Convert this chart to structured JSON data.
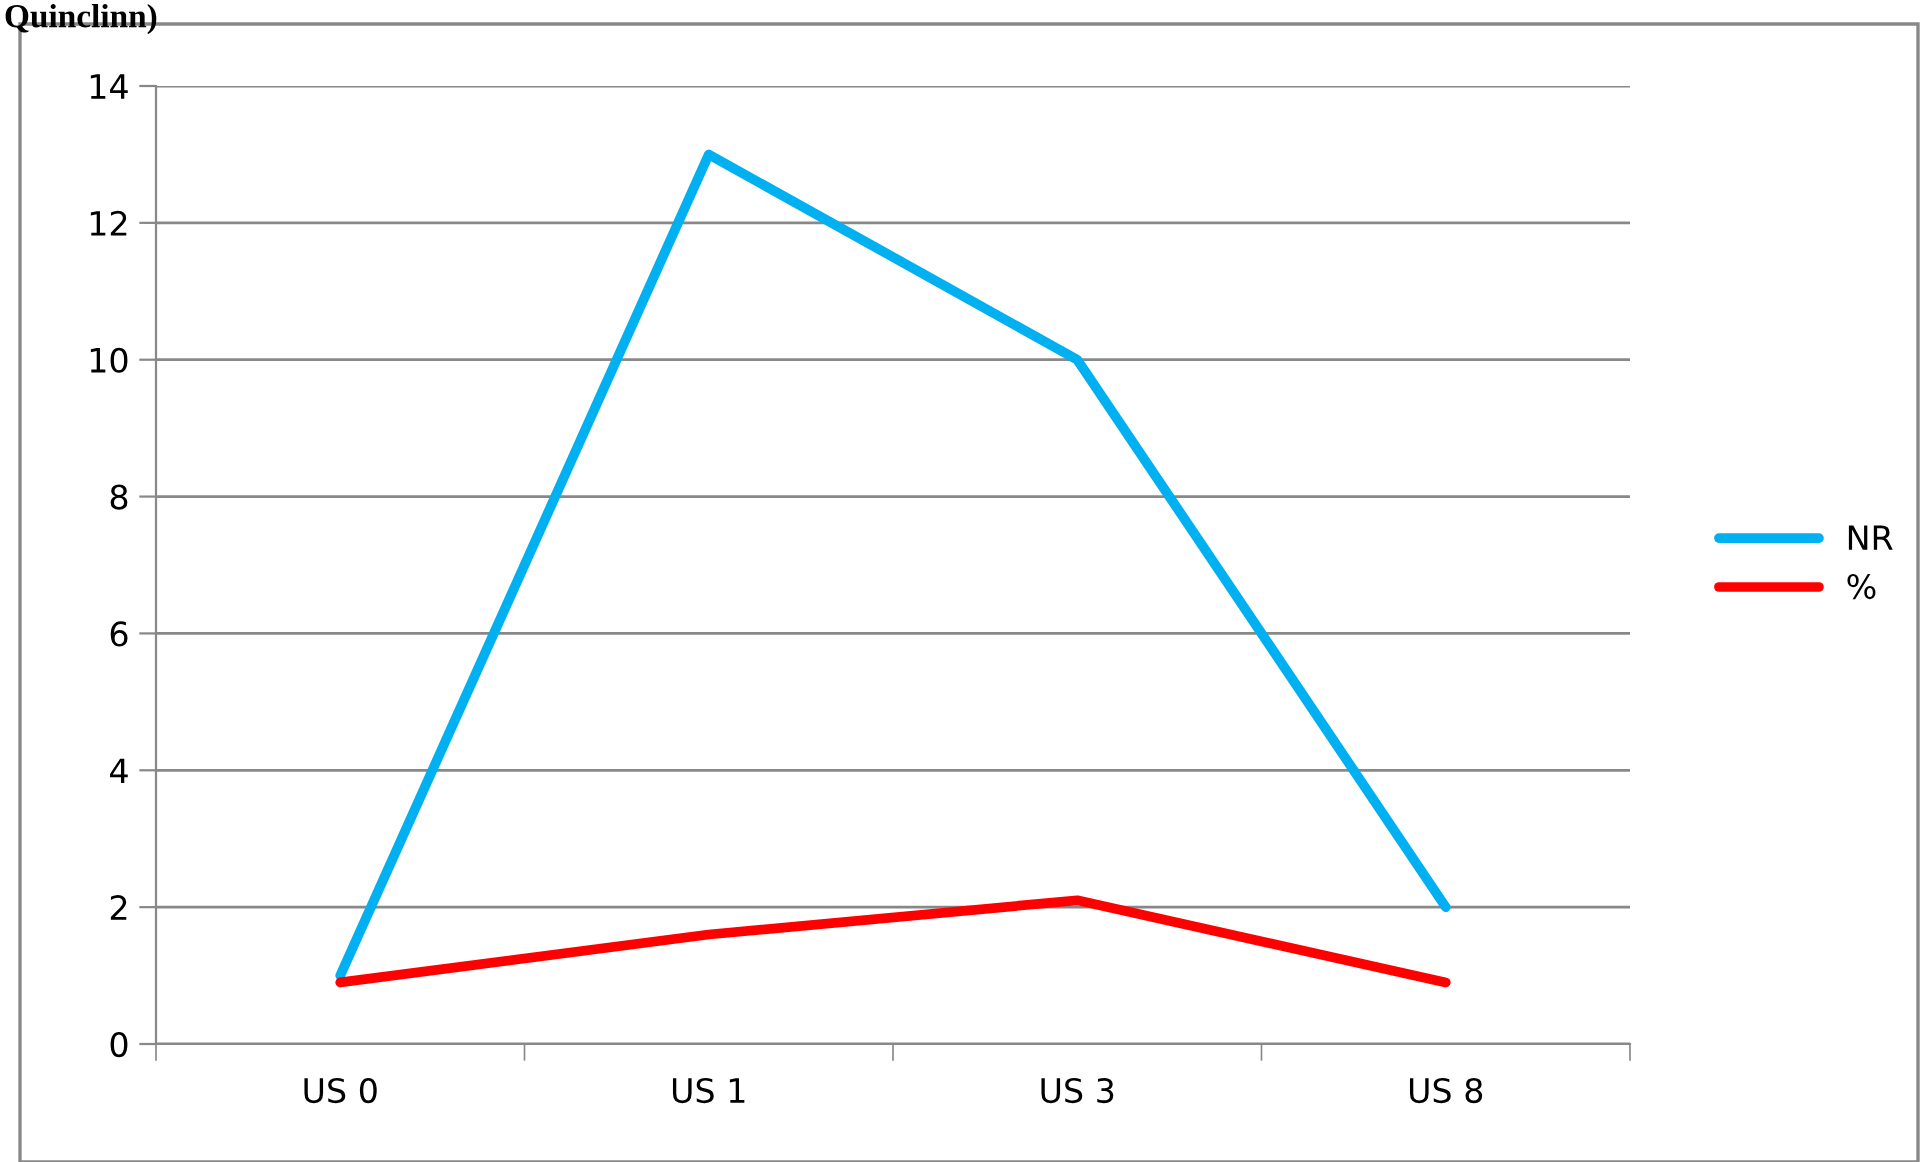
{
  "chart_data": {
    "type": "line",
    "title": "Quinclinn)",
    "categories": [
      "US 0",
      "US 1",
      "US 3",
      "US 8"
    ],
    "series": [
      {
        "name": "NR",
        "color": "#00b0f0",
        "values": [
          1,
          13,
          10,
          2
        ]
      },
      {
        "name": "%",
        "color": "#ff0000",
        "values": [
          0.9,
          1.6,
          2.1,
          0.9
        ]
      }
    ],
    "ylim": [
      0,
      14
    ],
    "yticks": [
      0,
      2,
      4,
      6,
      8,
      10,
      12,
      14
    ],
    "grid": "y",
    "legend": "right",
    "marker": "none",
    "line_style": "solid"
  }
}
